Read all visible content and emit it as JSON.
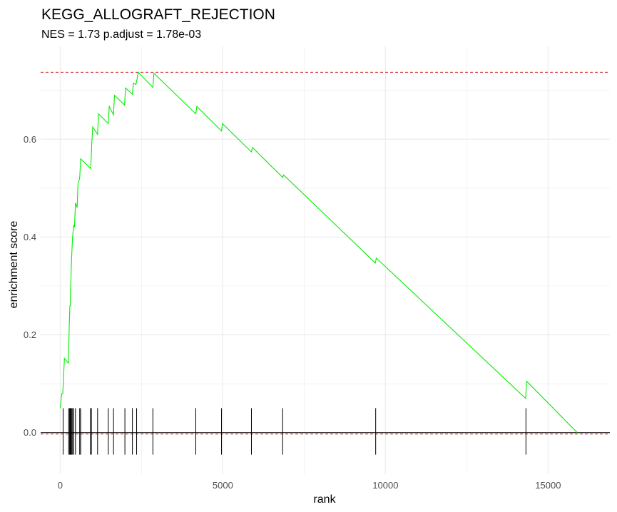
{
  "chart_data": {
    "type": "line",
    "title": "KEGG_ALLOGRAFT_REJECTION",
    "subtitle": "NES = 1.73 p.adjust = 1.78e-03",
    "xlabel": "rank",
    "ylabel": "enrichment score",
    "xlim": [
      -600,
      16900
    ],
    "ylim": [
      -0.085,
      0.79
    ],
    "x_ticks": [
      0,
      5000,
      10000,
      15000
    ],
    "x_tick_labels": [
      "0",
      "5000",
      "10000",
      "15000"
    ],
    "y_ticks": [
      0.0,
      0.2,
      0.4,
      0.6
    ],
    "y_tick_labels": [
      "0.0",
      "0.2",
      "0.4",
      "0.6"
    ],
    "grid": true,
    "max_es": 0.737,
    "colors": {
      "curve": "#00ee00",
      "threshold": "#cc0000",
      "ticks": "#000000",
      "grid": "#ebebeb"
    },
    "series": [
      {
        "x": [
          0,
          50,
          80,
          130,
          250,
          280,
          300,
          310,
          320,
          330,
          340,
          360,
          380,
          420,
          440,
          470,
          520,
          550,
          600,
          630,
          940,
          970,
          1000,
          1150,
          1180,
          1480,
          1510,
          1640,
          1670,
          1980,
          2010,
          2220,
          2250,
          2330,
          2360,
          2400,
          2850,
          2880,
          4170,
          4200,
          4960,
          4990,
          5880,
          5910,
          6840,
          6870,
          9690,
          9720,
          14310,
          14340,
          15900
        ],
        "y": [
          0.05,
          0.08,
          0.08,
          0.152,
          0.142,
          0.22,
          0.26,
          0.26,
          0.3,
          0.31,
          0.34,
          0.37,
          0.4,
          0.425,
          0.42,
          0.47,
          0.46,
          0.51,
          0.52,
          0.56,
          0.54,
          0.59,
          0.625,
          0.61,
          0.652,
          0.632,
          0.667,
          0.65,
          0.69,
          0.67,
          0.705,
          0.692,
          0.715,
          0.712,
          0.722,
          0.737,
          0.706,
          0.735,
          0.652,
          0.667,
          0.617,
          0.632,
          0.574,
          0.583,
          0.522,
          0.527,
          0.347,
          0.357,
          0.07,
          0.105,
          0.0
        ]
      }
    ],
    "gene_positions": [
      90,
      260,
      290,
      310,
      330,
      350,
      380,
      420,
      470,
      600,
      630,
      930,
      960,
      1150,
      1480,
      1640,
      1990,
      2220,
      2350,
      2850,
      4170,
      4960,
      5880,
      6840,
      9700,
      14320
    ]
  }
}
